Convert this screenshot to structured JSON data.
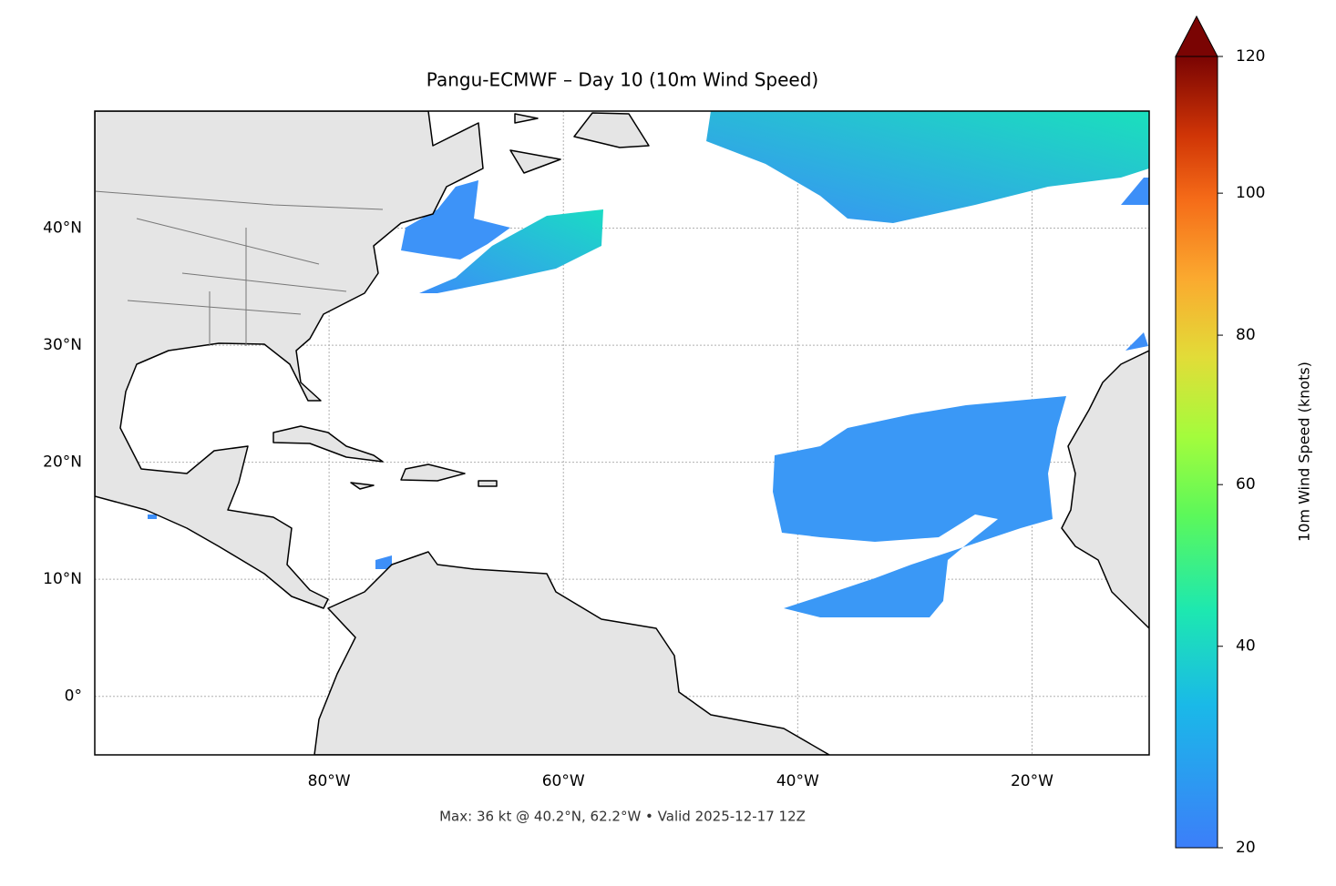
{
  "chart_data": {
    "type": "map",
    "title": "Pangu-ECMWF – Day 10 (10m Wind Speed)",
    "footer": "Max: 36 kt @ 40.2°N, 62.2°W • Valid 2025-12-17 12Z",
    "xlim": [
      -100,
      -10
    ],
    "ylim": [
      -5,
      50
    ],
    "xticks": [
      {
        "value": -80,
        "label": "80°W"
      },
      {
        "value": -60,
        "label": "60°W"
      },
      {
        "value": -40,
        "label": "40°W"
      },
      {
        "value": -20,
        "label": "20°W"
      }
    ],
    "yticks": [
      {
        "value": 0,
        "label": "0°"
      },
      {
        "value": 10,
        "label": "10°N"
      },
      {
        "value": 20,
        "label": "20°N"
      },
      {
        "value": 30,
        "label": "30°N"
      },
      {
        "value": 40,
        "label": "40°N"
      }
    ],
    "grid": true,
    "colorbar": {
      "label": "10m Wind Speed (knots)",
      "lim": [
        20,
        120
      ],
      "ticks": [
        20,
        40,
        60,
        80,
        100,
        120
      ],
      "gamma": 0.85,
      "extend": "max"
    }
  }
}
